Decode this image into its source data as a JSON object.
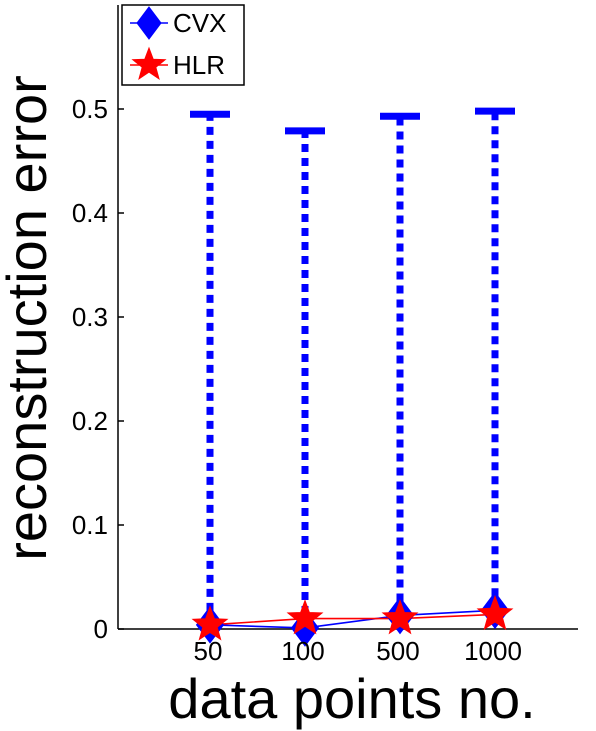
{
  "chart_data": {
    "type": "line",
    "title": "",
    "xlabel": "data points no.",
    "ylabel": "reconstruction error",
    "categories": [
      "50",
      "100",
      "500",
      "1000"
    ],
    "ylim": [
      0,
      0.6
    ],
    "yticks": [
      "0",
      "0.1",
      "0.2",
      "0.3",
      "0.4",
      "0.5"
    ],
    "ytick_values": [
      0,
      0.1,
      0.2,
      0.3,
      0.4,
      0.5
    ],
    "grid": false,
    "legend_position": "top-left",
    "series": [
      {
        "name": "CVX",
        "color": "#0000ff",
        "marker": "diamond-icon",
        "values": [
          0.004,
          0.001,
          0.013,
          0.018
        ],
        "error_upper": [
          0.495,
          0.479,
          0.493,
          0.498
        ],
        "error_style": "dotted"
      },
      {
        "name": "HLR",
        "color": "#ff0000",
        "marker": "star-icon",
        "values": [
          0.004,
          0.01,
          0.01,
          0.014
        ]
      }
    ]
  }
}
